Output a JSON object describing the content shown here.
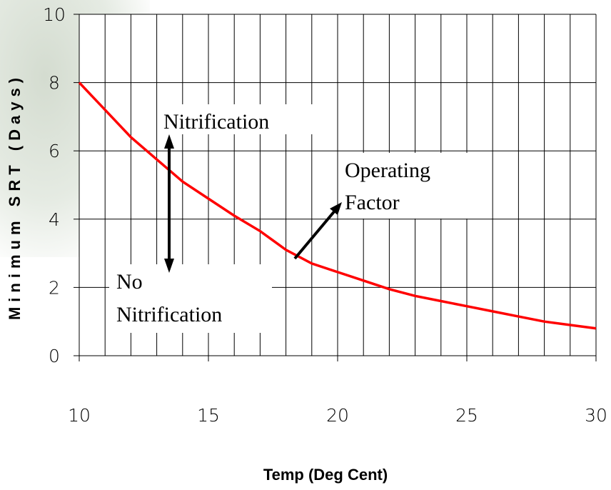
{
  "chart_data": {
    "type": "line",
    "x_label": "Temp (Deg Cent)",
    "y_label": "Minimum SRT (Days)",
    "x": [
      10,
      11,
      12,
      13,
      14,
      15,
      16,
      17,
      18,
      19,
      20,
      21,
      22,
      23,
      24,
      25,
      26,
      27,
      28,
      29,
      30
    ],
    "series": [
      {
        "name": "Minimum SRT",
        "color": "#ff0000",
        "values": [
          8,
          7.2,
          6.4,
          5.75,
          5.1,
          4.6,
          4.1,
          3.65,
          3.1,
          2.7,
          2.45,
          2.2,
          1.95,
          1.75,
          1.6,
          1.45,
          1.3,
          1.15,
          1.0,
          0.9,
          0.8
        ]
      }
    ],
    "xlim": [
      10,
      30
    ],
    "xticks": [
      10,
      15,
      20,
      25,
      30
    ],
    "xgrid": [
      10,
      11,
      12,
      13,
      14,
      15,
      16,
      17,
      18,
      19,
      20,
      21,
      22,
      23,
      24,
      25,
      26,
      27,
      28,
      29,
      30
    ],
    "ylim": [
      0,
      10
    ],
    "yticks": [
      0,
      2,
      4,
      6,
      8,
      10
    ],
    "grid": true,
    "annotations": [
      {
        "lines": [
          "Nitrification"
        ]
      },
      {
        "lines": [
          "No",
          "Nitrification"
        ]
      },
      {
        "lines": [
          "Operating",
          "Factor"
        ]
      }
    ]
  }
}
